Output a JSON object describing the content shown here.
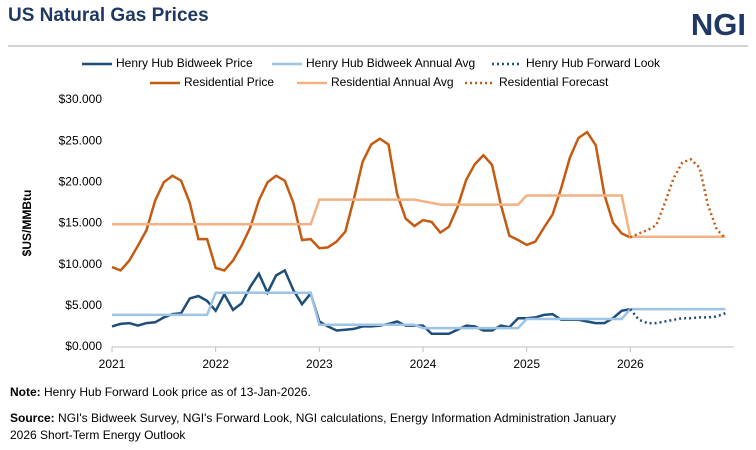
{
  "chart_data": {
    "type": "line",
    "title": "US Natural Gas Prices",
    "logo": "NGI",
    "y_label": "$US/MMBtu",
    "x": [
      2021,
      2021.083,
      2021.167,
      2021.25,
      2021.333,
      2021.417,
      2021.5,
      2021.583,
      2021.667,
      2021.75,
      2021.833,
      2021.917,
      2022,
      2022.083,
      2022.167,
      2022.25,
      2022.333,
      2022.417,
      2022.5,
      2022.583,
      2022.667,
      2022.75,
      2022.833,
      2022.917,
      2023,
      2023.083,
      2023.167,
      2023.25,
      2023.333,
      2023.417,
      2023.5,
      2023.583,
      2023.667,
      2023.75,
      2023.833,
      2023.917,
      2024,
      2024.083,
      2024.167,
      2024.25,
      2024.333,
      2024.417,
      2024.5,
      2024.583,
      2024.667,
      2024.75,
      2024.833,
      2024.917,
      2025,
      2025.083,
      2025.167,
      2025.25,
      2025.333,
      2025.417,
      2025.5,
      2025.583,
      2025.667,
      2025.75,
      2025.833,
      2025.917,
      2026,
      2026.083,
      2026.167,
      2026.25,
      2026.333,
      2026.417,
      2026.5,
      2026.583,
      2026.667,
      2026.75,
      2026.833,
      2026.917
    ],
    "xlim": [
      2021,
      2027
    ],
    "xticks": [
      2021,
      2022,
      2023,
      2024,
      2025,
      2026
    ],
    "ylim": [
      0,
      30
    ],
    "yticks": [
      {
        "value": 0,
        "label": "$0.000"
      },
      {
        "value": 5,
        "label": "$5.000"
      },
      {
        "value": 10,
        "label": "$10.000"
      },
      {
        "value": 15,
        "label": "$15.000"
      },
      {
        "value": 20,
        "label": "$20.000"
      },
      {
        "value": 25,
        "label": "$25.000"
      },
      {
        "value": 30,
        "label": "$30.000"
      }
    ],
    "series": [
      {
        "name": "Henry Hub Bidweek Price",
        "color": "#1f4e79",
        "style": "solid",
        "values": [
          2.5,
          2.8,
          2.9,
          2.6,
          2.9,
          3.0,
          3.6,
          4.0,
          4.1,
          5.9,
          6.2,
          5.6,
          4.4,
          6.4,
          4.5,
          5.3,
          7.3,
          8.9,
          6.6,
          8.7,
          9.3,
          6.9,
          5.2,
          6.5,
          3.1,
          2.5,
          2.0,
          2.1,
          2.2,
          2.5,
          2.5,
          2.6,
          2.8,
          3.1,
          2.6,
          2.6,
          2.6,
          1.6,
          1.6,
          1.6,
          2.1,
          2.6,
          2.5,
          2.0,
          2.0,
          2.6,
          2.4,
          3.5,
          3.5,
          3.6,
          3.9,
          4.0,
          3.3,
          3.3,
          3.3,
          3.1,
          2.9,
          2.9,
          3.5,
          4.4,
          4.6,
          null,
          null,
          null,
          null,
          null,
          null,
          null,
          null,
          null,
          null,
          null
        ]
      },
      {
        "name": "Henry Hub Bidweek Annual Avg",
        "color": "#9dc3e6",
        "style": "solid",
        "values": [
          3.9,
          3.9,
          3.9,
          3.9,
          3.9,
          3.9,
          3.9,
          3.9,
          3.9,
          3.9,
          3.9,
          3.9,
          6.6,
          6.6,
          6.6,
          6.6,
          6.6,
          6.6,
          6.6,
          6.6,
          6.6,
          6.6,
          6.6,
          6.6,
          2.7,
          2.7,
          2.7,
          2.7,
          2.7,
          2.7,
          2.7,
          2.7,
          2.7,
          2.7,
          2.7,
          2.7,
          2.3,
          2.3,
          2.3,
          2.3,
          2.3,
          2.3,
          2.3,
          2.3,
          2.3,
          2.3,
          2.3,
          2.3,
          3.4,
          3.4,
          3.4,
          3.4,
          3.4,
          3.4,
          3.4,
          3.4,
          3.4,
          3.4,
          3.4,
          3.4,
          4.6,
          4.6,
          4.6,
          4.6,
          4.6,
          4.6,
          4.6,
          4.6,
          4.6,
          4.6,
          4.6,
          4.6
        ]
      },
      {
        "name": "Henry Hub Forward Look",
        "color": "#1f4e79",
        "style": "dotted",
        "values": [
          null,
          null,
          null,
          null,
          null,
          null,
          null,
          null,
          null,
          null,
          null,
          null,
          null,
          null,
          null,
          null,
          null,
          null,
          null,
          null,
          null,
          null,
          null,
          null,
          null,
          null,
          null,
          null,
          null,
          null,
          null,
          null,
          null,
          null,
          null,
          null,
          null,
          null,
          null,
          null,
          null,
          null,
          null,
          null,
          null,
          null,
          null,
          null,
          null,
          null,
          null,
          null,
          null,
          null,
          null,
          null,
          null,
          null,
          null,
          null,
          4.6,
          3.3,
          2.9,
          2.9,
          3.1,
          3.3,
          3.5,
          3.5,
          3.6,
          3.6,
          3.7,
          4.1
        ]
      },
      {
        "name": "Residential Price",
        "color": "#c55a11",
        "style": "solid",
        "values": [
          9.7,
          9.3,
          10.5,
          12.3,
          14.2,
          17.8,
          20.0,
          20.8,
          20.2,
          17.5,
          13.1,
          13.1,
          9.6,
          9.3,
          10.5,
          12.3,
          14.5,
          17.8,
          20.0,
          20.8,
          20.2,
          17.5,
          13.0,
          13.1,
          12.0,
          12.1,
          12.8,
          14.0,
          18.0,
          22.5,
          24.6,
          25.3,
          24.6,
          18.6,
          15.6,
          14.7,
          15.4,
          15.2,
          13.9,
          14.6,
          17.0,
          20.3,
          22.2,
          23.3,
          22.1,
          17.3,
          13.5,
          13.0,
          12.4,
          12.8,
          14.5,
          16.1,
          19.3,
          23.0,
          25.4,
          26.1,
          24.5,
          18.5,
          15.1,
          13.8,
          13.3,
          null,
          null,
          null,
          null,
          null,
          null,
          null,
          null,
          null,
          null,
          null
        ]
      },
      {
        "name": "Residential Annual Avg",
        "color": "#f4b183",
        "style": "solid",
        "values": [
          14.9,
          14.9,
          14.9,
          14.9,
          14.9,
          14.9,
          14.9,
          14.9,
          14.9,
          14.9,
          14.9,
          14.9,
          14.9,
          14.9,
          14.9,
          14.9,
          14.9,
          14.9,
          14.9,
          14.9,
          14.9,
          14.9,
          14.9,
          14.9,
          17.9,
          17.9,
          17.9,
          17.9,
          17.9,
          17.9,
          17.9,
          17.9,
          17.9,
          17.9,
          17.9,
          17.9,
          17.7,
          17.5,
          17.3,
          17.3,
          17.3,
          17.3,
          17.3,
          17.3,
          17.3,
          17.3,
          17.3,
          17.3,
          18.4,
          18.4,
          18.4,
          18.4,
          18.4,
          18.4,
          18.4,
          18.4,
          18.4,
          18.4,
          18.4,
          18.4,
          13.4,
          13.4,
          13.4,
          13.4,
          13.4,
          13.4,
          13.4,
          13.4,
          13.4,
          13.4,
          13.4,
          13.4
        ]
      },
      {
        "name": "Residential Forecast",
        "color": "#c55a11",
        "style": "dotted",
        "values": [
          null,
          null,
          null,
          null,
          null,
          null,
          null,
          null,
          null,
          null,
          null,
          null,
          null,
          null,
          null,
          null,
          null,
          null,
          null,
          null,
          null,
          null,
          null,
          null,
          null,
          null,
          null,
          null,
          null,
          null,
          null,
          null,
          null,
          null,
          null,
          null,
          null,
          null,
          null,
          null,
          null,
          null,
          null,
          null,
          null,
          null,
          null,
          null,
          null,
          null,
          null,
          null,
          null,
          null,
          null,
          null,
          null,
          null,
          null,
          null,
          13.3,
          13.8,
          14.2,
          14.8,
          17.5,
          20.5,
          22.4,
          22.8,
          21.8,
          17.2,
          14.3,
          13.2
        ]
      }
    ],
    "note": {
      "label": "Note:",
      "text": "Henry Hub Forward Look price as of 13-Jan-2026."
    },
    "source": {
      "label": "Source:",
      "lines": [
        "NGI's Bidweek Survey, NGI's Forward Look, NGI calculations, Energy Information Administration January",
        "2026 Short-Term Energy Outlook"
      ]
    }
  }
}
